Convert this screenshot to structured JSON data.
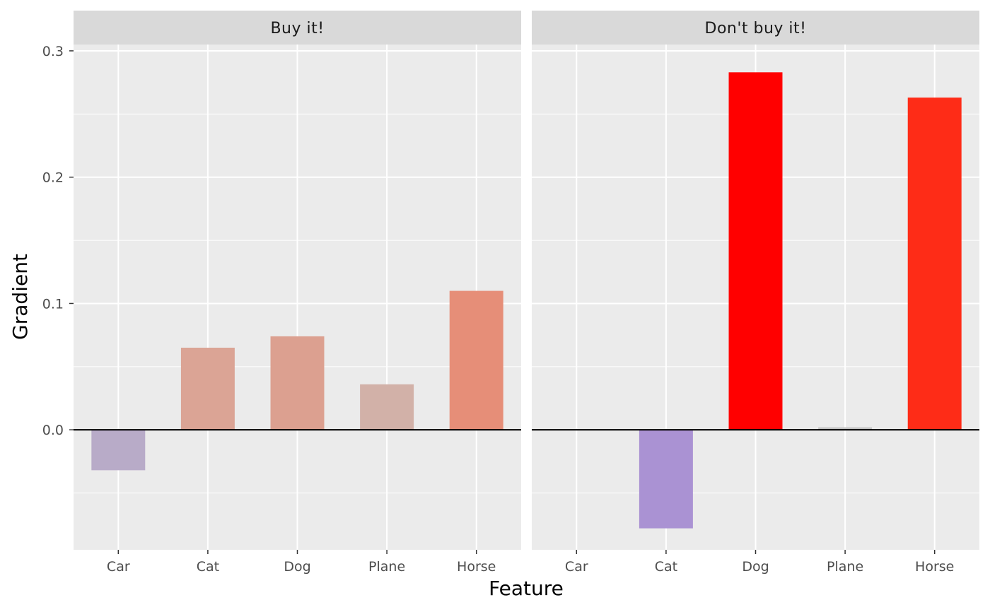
{
  "chart_data": {
    "type": "bar",
    "xlabel": "Feature",
    "ylabel": "Gradient",
    "categories": [
      "Car",
      "Cat",
      "Dog",
      "Plane",
      "Horse"
    ],
    "ylim": [
      -0.095,
      0.305
    ],
    "yticks": [
      0.0,
      0.1,
      0.2,
      0.3
    ],
    "ytick_labels": [
      "0.0",
      "0.1",
      "0.2",
      "0.3"
    ],
    "grid": true,
    "facet_colors": {
      "panel_background": "#EBEBEB",
      "strip_background": "#D9D9D9",
      "grid": "#FFFFFF",
      "zero_line": "#000000"
    },
    "facets": [
      {
        "label": "Buy it!",
        "values": [
          -0.032,
          0.065,
          0.074,
          0.036,
          0.11
        ],
        "colors": [
          "#B8ABC8",
          "#DBA495",
          "#DCA090",
          "#D2B1A8",
          "#E68E78"
        ]
      },
      {
        "label": "Don't buy it!",
        "values": [
          0.0,
          -0.078,
          0.283,
          0.002,
          0.263
        ],
        "colors": [
          "#BDBDBD",
          "#AA92D3",
          "#FF0000",
          "#C4C4C4",
          "#FE2C17"
        ]
      }
    ]
  }
}
